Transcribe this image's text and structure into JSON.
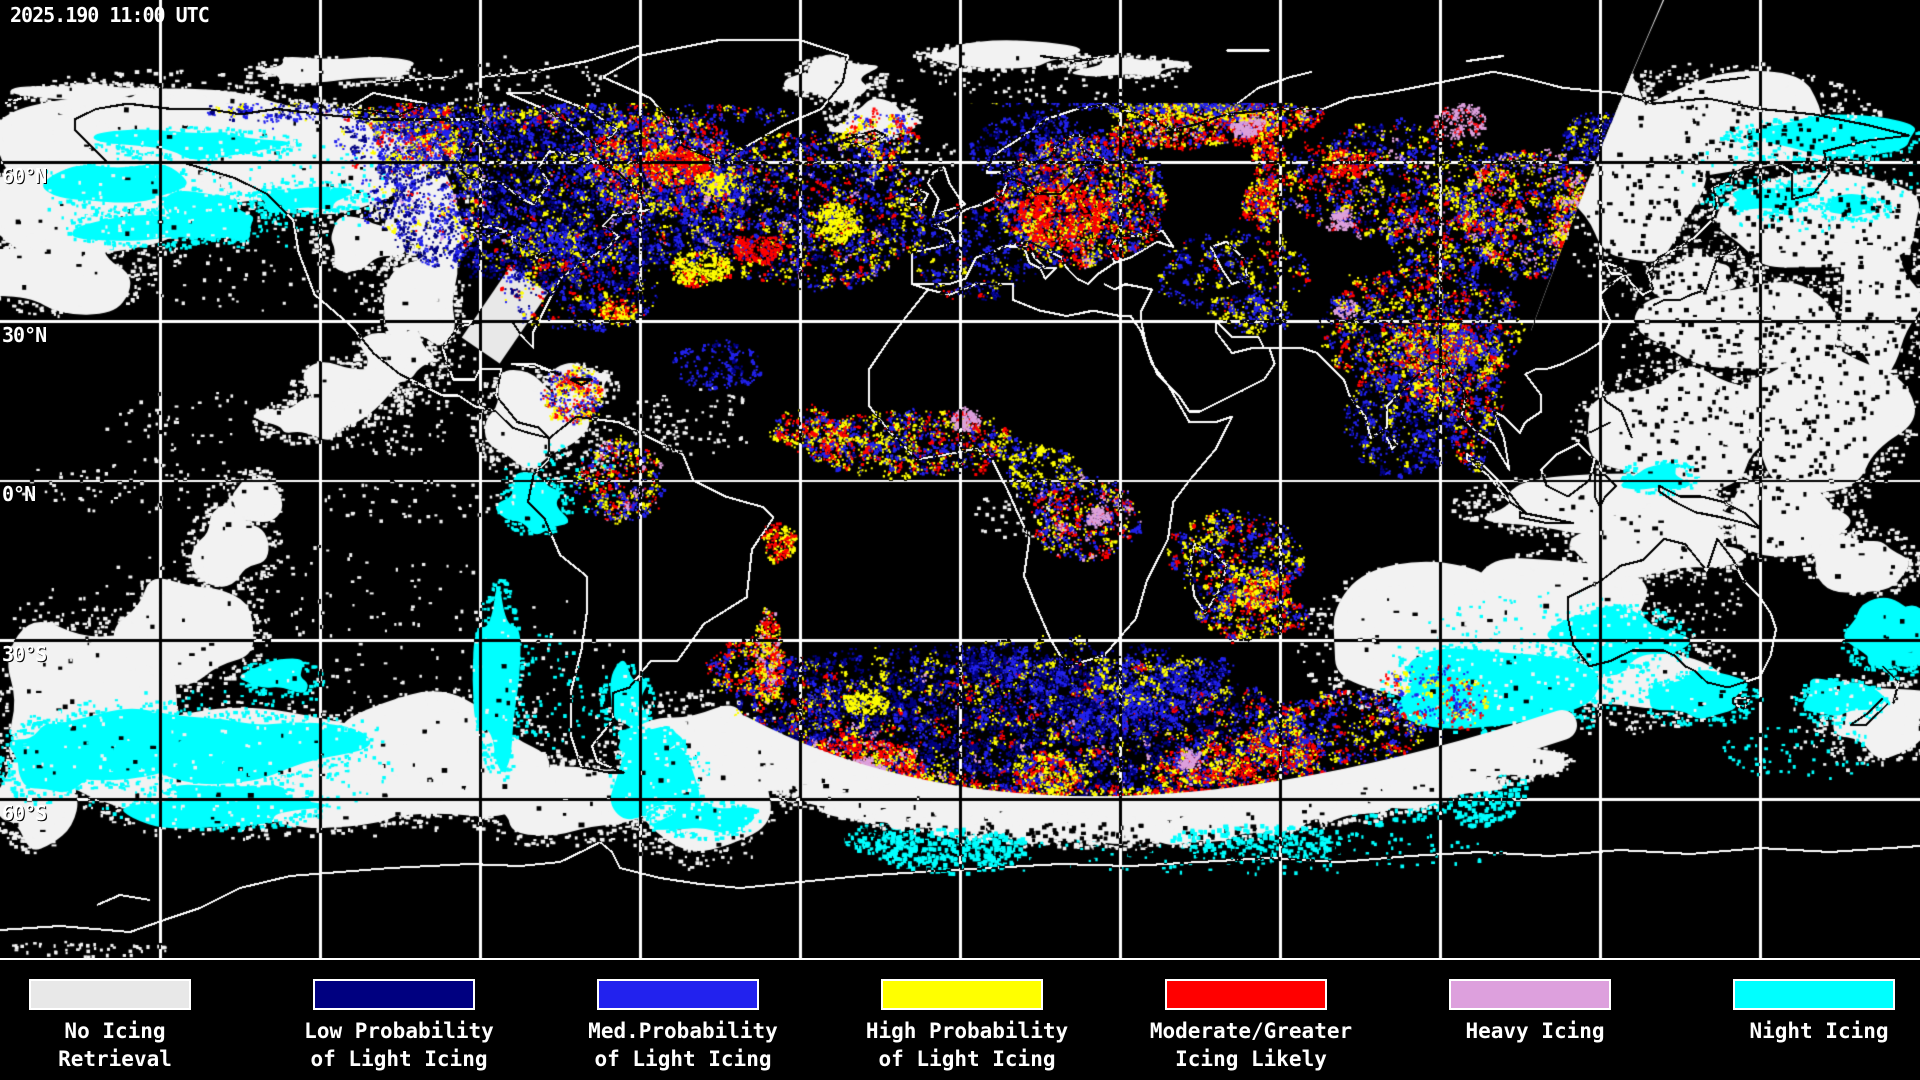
{
  "header": {
    "timestamp": "2025.190 11:00 UTC"
  },
  "map": {
    "lat_labels": [
      {
        "text": "60°N"
      },
      {
        "text": "30°N"
      },
      {
        "text": "0°N"
      },
      {
        "text": "30°S"
      },
      {
        "text": "60°S"
      }
    ]
  },
  "legend": {
    "items": [
      {
        "line1": "No Icing",
        "line2": "Retrieval",
        "color": "#E8E8E8"
      },
      {
        "line1": "Low Probability",
        "line2": "of Light Icing",
        "color": "#000080"
      },
      {
        "line1": "Med.Probability",
        "line2": "of Light Icing",
        "color": "#2222EE"
      },
      {
        "line1": "High Probability",
        "line2": "of Light Icing",
        "color": "#FFFF00"
      },
      {
        "line1": "Moderate/Greater",
        "line2": "Icing Likely",
        "color": "#FF0000"
      },
      {
        "line1": "Heavy Icing",
        "line2": "",
        "color": "#DDA0DD"
      },
      {
        "line1": "Night Icing",
        "line2": "",
        "color": "#00FFFF"
      }
    ]
  }
}
